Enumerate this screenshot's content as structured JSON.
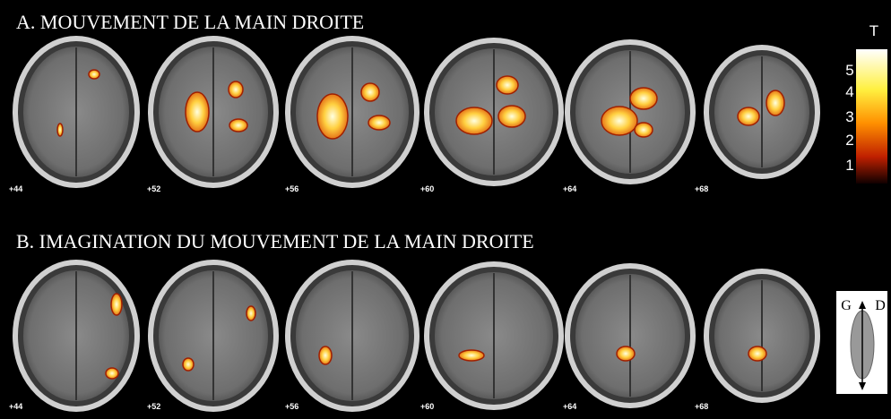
{
  "panels": [
    {
      "title": "A. MOUVEMENT DE LA MAIN DROITE",
      "slices": [
        "+44",
        "+52",
        "+56",
        "+60",
        "+64",
        "+68"
      ]
    },
    {
      "title": "B. IMAGINATION DU MOUVEMENT  DE  LA  MAIN DROITE",
      "slices": [
        "+44",
        "+52",
        "+56",
        "+60",
        "+64",
        "+68"
      ]
    }
  ],
  "colorbar": {
    "title": "T",
    "ticks": [
      5,
      4,
      3,
      2,
      1
    ]
  },
  "orientation": {
    "left": "G",
    "right": "D"
  }
}
